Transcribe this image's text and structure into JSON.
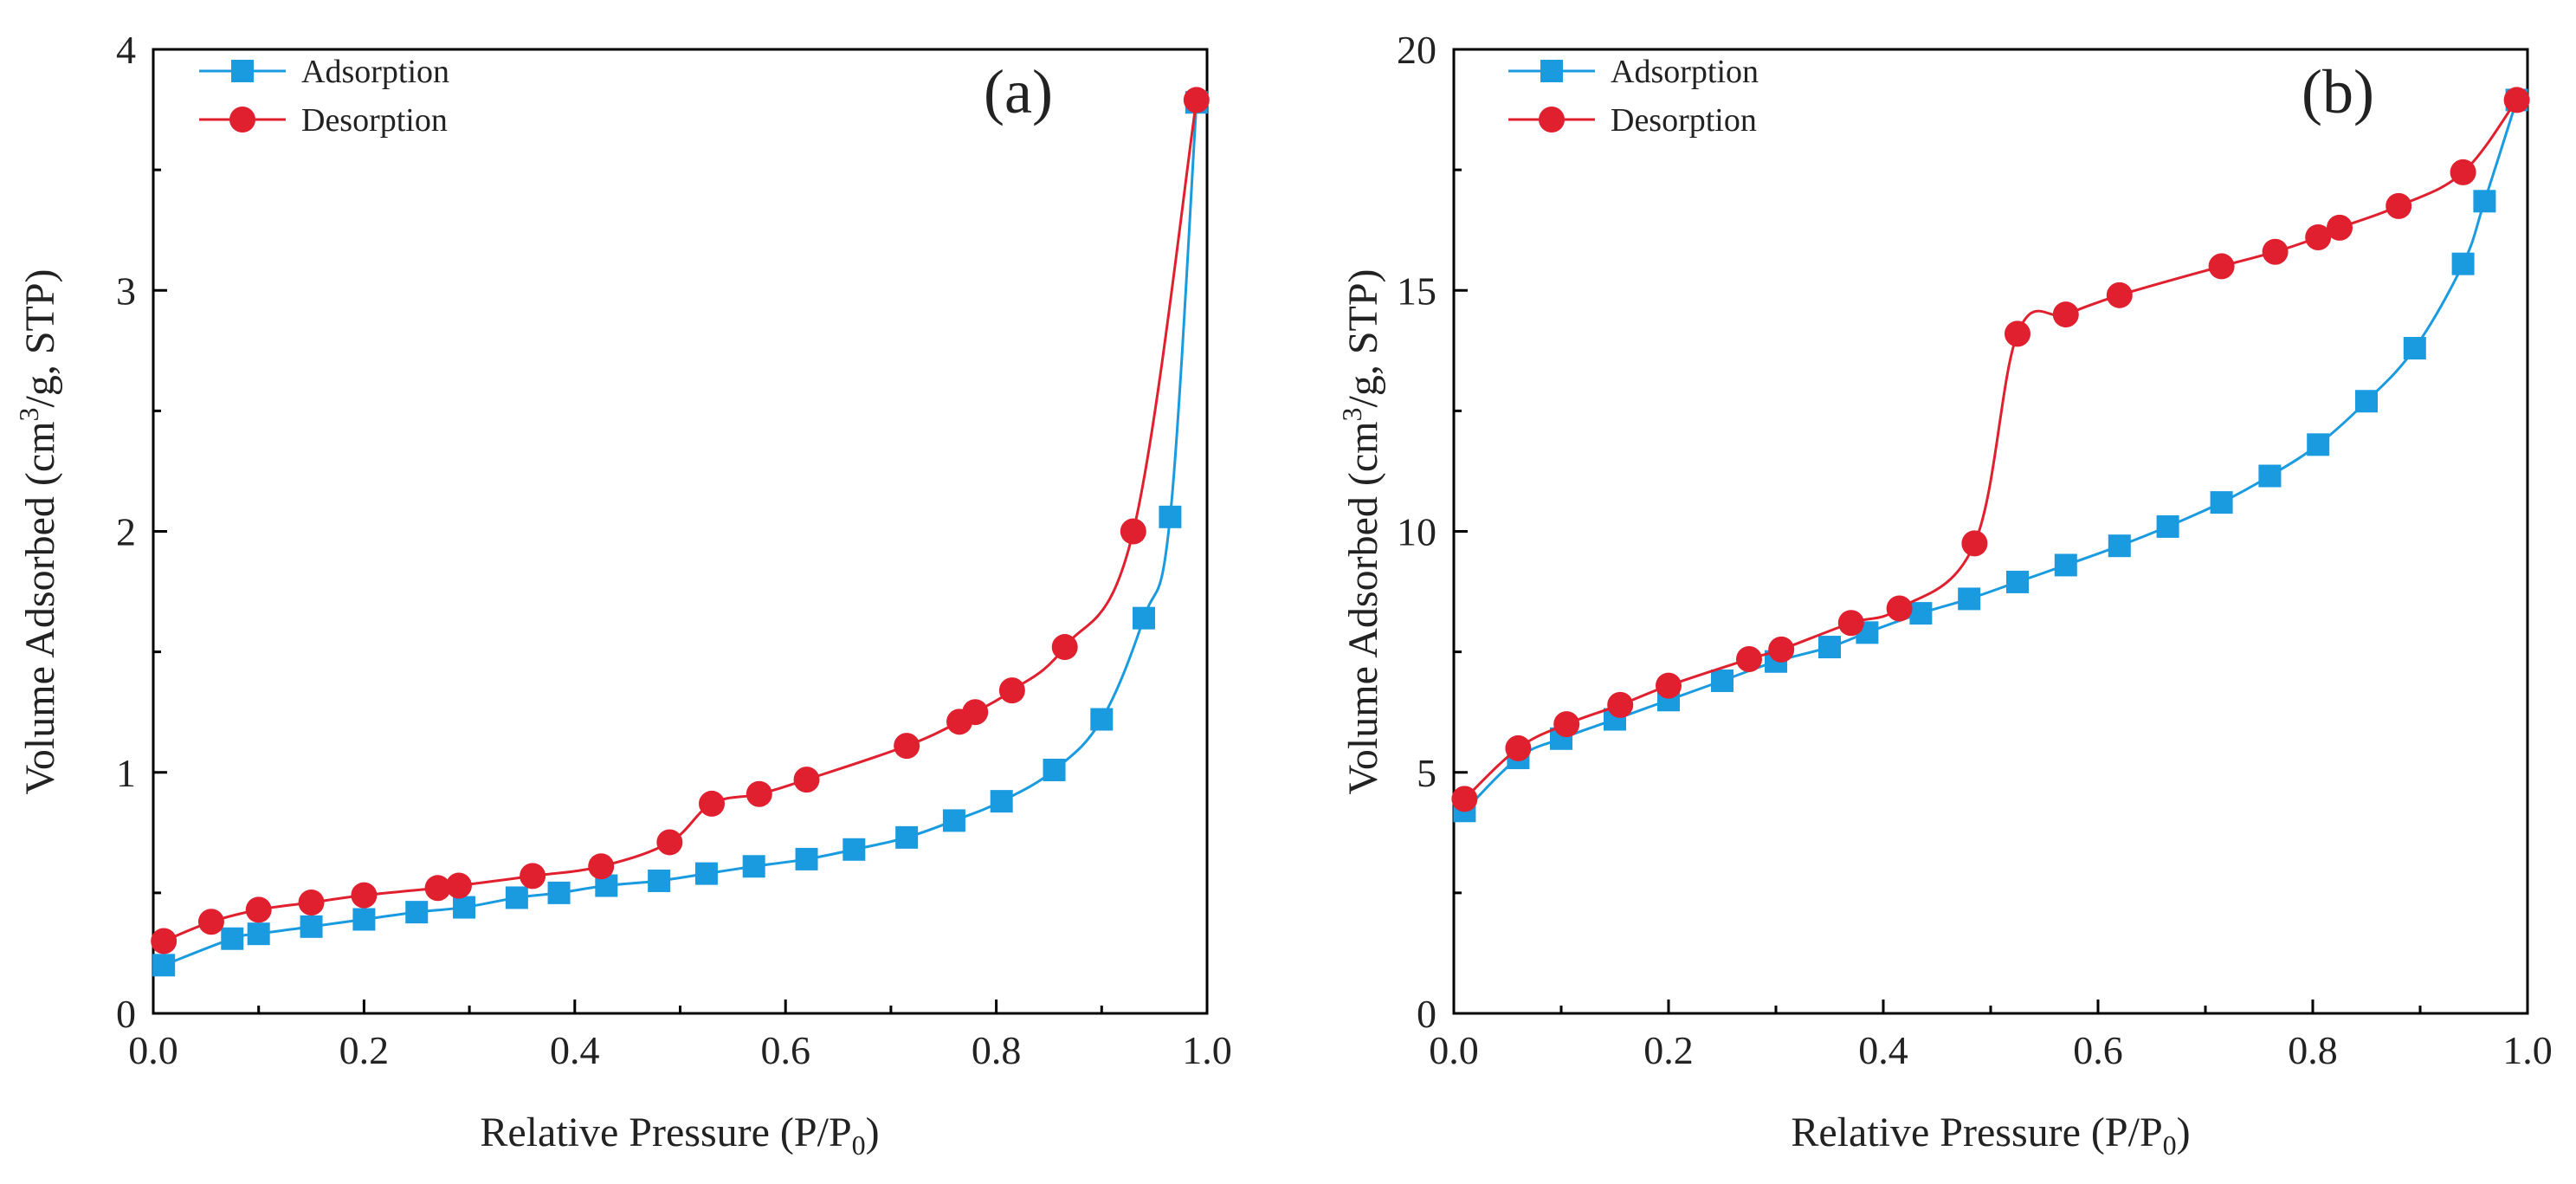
{
  "chart_data": [
    {
      "type": "line",
      "panel_label": "(a)",
      "xlabel": "Relative Pressure (P/P0)",
      "xlabel_parts": {
        "main": "Relative Pressure (P/P",
        "sub": "0",
        "tail": ")"
      },
      "ylabel": "Volume Adsorbed (cm3/g, STP)",
      "ylabel_parts": {
        "pre": "Volume Adsorbed (cm",
        "sup": "3",
        "post": "/g, STP)"
      },
      "xlim": [
        0,
        1.0
      ],
      "ylim": [
        0,
        4
      ],
      "xticks": [
        "0.0",
        "0.2",
        "0.4",
        "0.6",
        "0.8",
        "1.0"
      ],
      "xtick_values": [
        0,
        0.2,
        0.4,
        0.6,
        0.8,
        1.0
      ],
      "yticks": [
        "0",
        "1",
        "2",
        "3",
        "4"
      ],
      "ytick_values": [
        0,
        1,
        2,
        3,
        4
      ],
      "legend": {
        "placement": "top-left",
        "entries": [
          "Adsorption",
          "Desorption"
        ]
      },
      "series": [
        {
          "name": "Adsorption",
          "color": "#1a9be0",
          "marker": "square",
          "x": [
            0.01,
            0.075,
            0.1,
            0.15,
            0.2,
            0.25,
            0.295,
            0.345,
            0.385,
            0.43,
            0.48,
            0.525,
            0.57,
            0.62,
            0.665,
            0.715,
            0.76,
            0.805,
            0.855,
            0.9,
            0.94,
            0.965,
            0.99
          ],
          "y": [
            0.2,
            0.31,
            0.33,
            0.36,
            0.39,
            0.42,
            0.44,
            0.48,
            0.5,
            0.53,
            0.55,
            0.58,
            0.61,
            0.64,
            0.68,
            0.73,
            0.8,
            0.88,
            1.01,
            1.22,
            1.64,
            2.06,
            3.78
          ]
        },
        {
          "name": "Desorption",
          "color": "#e0202e",
          "marker": "circle",
          "x": [
            0.01,
            0.055,
            0.1,
            0.15,
            0.2,
            0.27,
            0.29,
            0.36,
            0.425,
            0.49,
            0.53,
            0.575,
            0.62,
            0.715,
            0.765,
            0.78,
            0.815,
            0.865,
            0.93,
            0.99
          ],
          "y": [
            0.3,
            0.38,
            0.43,
            0.46,
            0.49,
            0.52,
            0.53,
            0.57,
            0.61,
            0.71,
            0.87,
            0.91,
            0.97,
            1.11,
            1.21,
            1.25,
            1.34,
            1.52,
            2.0,
            3.79
          ]
        }
      ]
    },
    {
      "type": "line",
      "panel_label": "(b)",
      "xlabel": "Relative Pressure (P/P0)",
      "xlabel_parts": {
        "main": "Relative Pressure (P/P",
        "sub": "0",
        "tail": ")"
      },
      "ylabel": "Volume Adsorbed (cm3/g, STP)",
      "ylabel_parts": {
        "pre": "Volume Adsorbed (cm",
        "sup": "3",
        "post": "/g, STP)"
      },
      "xlim": [
        0,
        1.0
      ],
      "ylim": [
        0,
        20
      ],
      "xticks": [
        "0.0",
        "0.2",
        "0.4",
        "0.6",
        "0.8",
        "1.0"
      ],
      "xtick_values": [
        0,
        0.2,
        0.4,
        0.6,
        0.8,
        1.0
      ],
      "yticks": [
        "0",
        "5",
        "10",
        "15",
        "20"
      ],
      "ytick_values": [
        0,
        5,
        10,
        15,
        20
      ],
      "legend": {
        "placement": "top-left",
        "entries": [
          "Adsorption",
          "Desorption"
        ]
      },
      "series": [
        {
          "name": "Adsorption",
          "color": "#1a9be0",
          "marker": "square",
          "x": [
            0.01,
            0.06,
            0.1,
            0.15,
            0.2,
            0.25,
            0.3,
            0.35,
            0.385,
            0.435,
            0.48,
            0.525,
            0.57,
            0.62,
            0.665,
            0.715,
            0.76,
            0.805,
            0.85,
            0.895,
            0.94,
            0.96,
            0.99
          ],
          "y": [
            4.2,
            5.3,
            5.7,
            6.1,
            6.5,
            6.9,
            7.3,
            7.6,
            7.9,
            8.3,
            8.6,
            8.95,
            9.3,
            9.7,
            10.1,
            10.6,
            11.15,
            11.8,
            12.7,
            13.8,
            15.55,
            16.85,
            18.95
          ]
        },
        {
          "name": "Desorption",
          "color": "#e0202e",
          "marker": "circle",
          "x": [
            0.01,
            0.06,
            0.105,
            0.155,
            0.2,
            0.275,
            0.305,
            0.37,
            0.415,
            0.485,
            0.525,
            0.57,
            0.62,
            0.715,
            0.765,
            0.805,
            0.825,
            0.88,
            0.94,
            0.99
          ],
          "y": [
            4.45,
            5.5,
            6.0,
            6.4,
            6.8,
            7.35,
            7.55,
            8.1,
            8.4,
            9.75,
            14.1,
            14.5,
            14.9,
            15.5,
            15.8,
            16.1,
            16.3,
            16.75,
            17.45,
            18.95
          ]
        }
      ]
    }
  ]
}
